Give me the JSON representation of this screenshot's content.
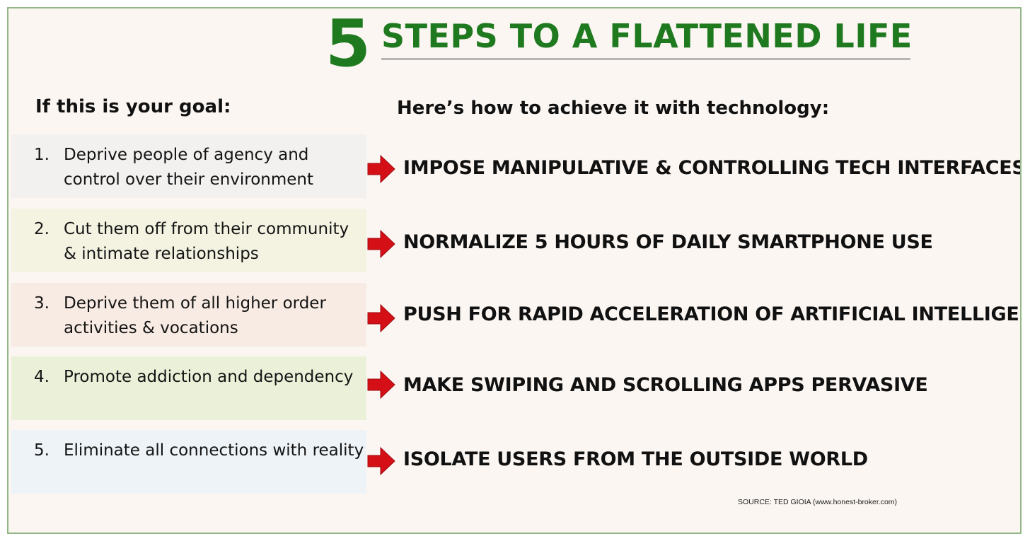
{
  "header": {
    "number": "5",
    "title": "STEPS TO A FLATTENED LIFE"
  },
  "columns": {
    "goal_heading": "If this is your goal:",
    "how_heading": "Here’s how to achieve it with technology:"
  },
  "steps": [
    {
      "number": "1.",
      "goal": "Deprive people of agency and control over their environment",
      "action": "IMPOSE MANIPULATIVE & CONTROLLING TECH INTERFACES"
    },
    {
      "number": "2.",
      "goal": "Cut them off from their community & intimate relationships",
      "action": "NORMALIZE 5 HOURS OF DAILY SMARTPHONE USE"
    },
    {
      "number": "3.",
      "goal": "Deprive them of all higher order activities & vocations",
      "action": "PUSH FOR RAPID ACCELERATION OF ARTIFICIAL INTELLIGENCE"
    },
    {
      "number": "4.",
      "goal": "Promote addiction and dependency",
      "action": "MAKE SWIPING AND SCROLLING APPS PERVASIVE"
    },
    {
      "number": "5.",
      "goal": "Eliminate all connections with reality",
      "action": "ISOLATE USERS FROM THE OUTSIDE WORLD"
    }
  ],
  "source": "SOURCE: TED GIOIA (www.honest-broker.com)",
  "colors": {
    "title_green": "#1f7a1f",
    "frame_border": "#92b886",
    "arrow_red": "#d40f16",
    "background": "#fbf6f2"
  }
}
